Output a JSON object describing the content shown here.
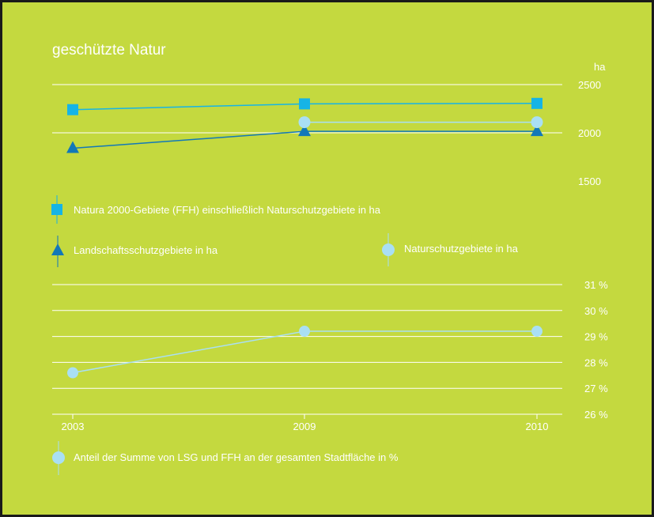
{
  "colors": {
    "background": "#c4d93f",
    "natura": "#16b4e6",
    "landschaft": "#1278b8",
    "naturschutz": "#a9dff4",
    "anteil": "#a9dff4",
    "text": "#ffffff"
  },
  "chart_data": [
    {
      "type": "line",
      "title": "geschützte Natur",
      "ylabel": "ha",
      "ylim": [
        1500,
        2500
      ],
      "yticks": [
        "2500",
        "2000",
        "1500"
      ],
      "x": [
        "2003",
        "2009",
        "2010"
      ],
      "grid": true,
      "series": [
        {
          "name": "Natura 2000-Gebiete (FFH) einschließlich Naturschutzgebiete in ha",
          "marker": "square",
          "color_key": "natura",
          "values": [
            2240,
            2300,
            2305
          ]
        },
        {
          "name": "Landschaftsschutzgebiete in ha",
          "marker": "triangle",
          "color_key": "landschaft",
          "values": [
            1840,
            2015,
            2015
          ]
        },
        {
          "name": "Naturschutzgebiete in ha",
          "marker": "circle",
          "color_key": "naturschutz",
          "values": [
            null,
            2110,
            2110
          ]
        }
      ]
    },
    {
      "type": "line",
      "ylim": [
        26,
        31
      ],
      "yticks": [
        "31 %",
        "30 %",
        "29 %",
        "28 %",
        "27 %",
        "26 %"
      ],
      "x": [
        "2003",
        "2009",
        "2010"
      ],
      "xticks": [
        "2003",
        "2009",
        "2010"
      ],
      "grid": true,
      "series": [
        {
          "name": "Anteil der Summe von LSG und FFH an der gesamten Stadtfläche in %",
          "marker": "circle",
          "color_key": "anteil",
          "values": [
            27.6,
            29.2,
            29.2
          ]
        }
      ]
    }
  ]
}
